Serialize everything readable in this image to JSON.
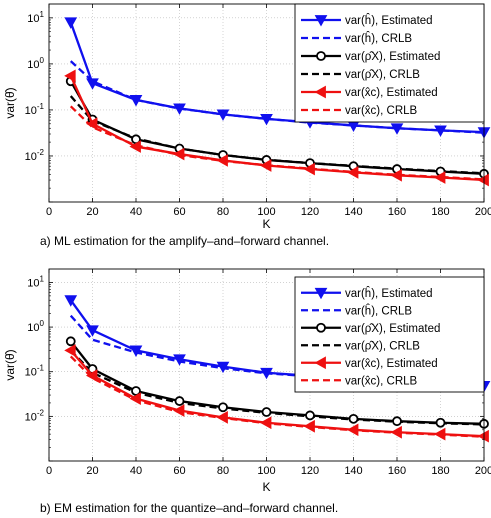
{
  "chart_data": [
    {
      "type": "line",
      "caption": "a) ML estimation for the amplify–and–forward channel.",
      "xlabel": "K",
      "ylabel": "var(θ̂)",
      "xlim": [
        0,
        200
      ],
      "ylim": [
        0.001,
        20
      ],
      "yscale": "log",
      "xticks": [
        "0",
        "20",
        "40",
        "60",
        "80",
        "100",
        "120",
        "140",
        "160",
        "180",
        "200"
      ],
      "yticks": [
        {
          "base": "10",
          "exp": "-2"
        },
        {
          "base": "10",
          "exp": "-1"
        },
        {
          "base": "10",
          "exp": "0"
        },
        {
          "base": "10",
          "exp": "1"
        }
      ],
      "grid": true,
      "legend_position": "top-right",
      "x": [
        10,
        20,
        40,
        60,
        80,
        100,
        120,
        140,
        160,
        180,
        200
      ],
      "series": [
        {
          "name": "var(ĥ), Estimated",
          "color": "#1010ee",
          "dash": "solid",
          "marker": "triangle-down",
          "values": [
            8.0,
            0.38,
            0.165,
            0.108,
            0.08,
            0.064,
            0.054,
            0.046,
            0.04,
            0.036,
            0.033
          ]
        },
        {
          "name": "var(ĥ), CRLB",
          "color": "#1010ee",
          "dash": "dashed",
          "marker": "none",
          "values": [
            1.15,
            0.42,
            0.165,
            0.107,
            0.08,
            0.064,
            0.053,
            0.046,
            0.04,
            0.036,
            0.032
          ]
        },
        {
          "name": "var(ρ̂X), Estimated",
          "color": "#000000",
          "dash": "solid",
          "marker": "circle",
          "values": [
            0.42,
            0.062,
            0.023,
            0.0145,
            0.0105,
            0.0082,
            0.007,
            0.006,
            0.0052,
            0.0046,
            0.0041
          ]
        },
        {
          "name": "var(ρ̂X), CRLB",
          "color": "#000000",
          "dash": "dashed",
          "marker": "none",
          "values": [
            0.2,
            0.058,
            0.024,
            0.0145,
            0.0105,
            0.0083,
            0.007,
            0.0061,
            0.0053,
            0.0047,
            0.0042
          ]
        },
        {
          "name": "var(x̂c), Estimated",
          "color": "#ee1010",
          "dash": "solid",
          "marker": "triangle-left",
          "values": [
            0.55,
            0.05,
            0.016,
            0.011,
            0.008,
            0.0062,
            0.0052,
            0.0044,
            0.0038,
            0.0034,
            0.003
          ]
        },
        {
          "name": "var(x̂c), CRLB",
          "color": "#ee1010",
          "dash": "dashed",
          "marker": "none",
          "values": [
            0.12,
            0.042,
            0.017,
            0.0105,
            0.0078,
            0.0063,
            0.0053,
            0.0045,
            0.0039,
            0.0035,
            0.0031
          ]
        }
      ]
    },
    {
      "type": "line",
      "caption": "b) EM estimation for the quantize–and–forward channel.",
      "xlabel": "K",
      "ylabel": "var(θ̂)",
      "xlim": [
        0,
        200
      ],
      "ylim": [
        0.001,
        20
      ],
      "yscale": "log",
      "xticks": [
        "0",
        "20",
        "40",
        "60",
        "80",
        "100",
        "120",
        "140",
        "160",
        "180",
        "200"
      ],
      "yticks": [
        {
          "base": "10",
          "exp": "-2"
        },
        {
          "base": "10",
          "exp": "-1"
        },
        {
          "base": "10",
          "exp": "0"
        },
        {
          "base": "10",
          "exp": "1"
        }
      ],
      "grid": true,
      "legend_position": "top-right",
      "x": [
        10,
        20,
        40,
        60,
        80,
        100,
        120,
        140,
        160,
        180,
        200
      ],
      "series": [
        {
          "name": "var(ĥ), Estimated",
          "color": "#1010ee",
          "dash": "solid",
          "marker": "triangle-down",
          "values": [
            4.0,
            0.85,
            0.3,
            0.19,
            0.13,
            0.095,
            0.081,
            0.071,
            0.062,
            0.054,
            0.048
          ]
        },
        {
          "name": "var(ĥ), CRLB",
          "color": "#1010ee",
          "dash": "dashed",
          "marker": "none",
          "values": [
            1.8,
            0.52,
            0.27,
            0.17,
            0.12,
            0.092,
            0.079,
            0.069,
            0.06,
            0.052,
            0.046
          ]
        },
        {
          "name": "var(ρ̂X), Estimated",
          "color": "#000000",
          "dash": "solid",
          "marker": "circle",
          "values": [
            0.48,
            0.115,
            0.037,
            0.022,
            0.016,
            0.0125,
            0.0105,
            0.0088,
            0.0078,
            0.0072,
            0.0068
          ]
        },
        {
          "name": "var(ρ̂X), CRLB",
          "color": "#000000",
          "dash": "dashed",
          "marker": "none",
          "values": [
            0.3,
            0.095,
            0.034,
            0.02,
            0.015,
            0.012,
            0.01,
            0.0085,
            0.0076,
            0.007,
            0.0066
          ]
        },
        {
          "name": "var(x̂c), Estimated",
          "color": "#ee1010",
          "dash": "solid",
          "marker": "triangle-left",
          "values": [
            0.3,
            0.082,
            0.025,
            0.0135,
            0.0095,
            0.0072,
            0.006,
            0.005,
            0.0044,
            0.004,
            0.0036
          ]
        },
        {
          "name": "var(x̂c), CRLB",
          "color": "#ee1010",
          "dash": "dashed",
          "marker": "none",
          "values": [
            0.22,
            0.072,
            0.023,
            0.0125,
            0.0092,
            0.007,
            0.0058,
            0.0049,
            0.0043,
            0.0039,
            0.0035
          ]
        }
      ]
    }
  ]
}
